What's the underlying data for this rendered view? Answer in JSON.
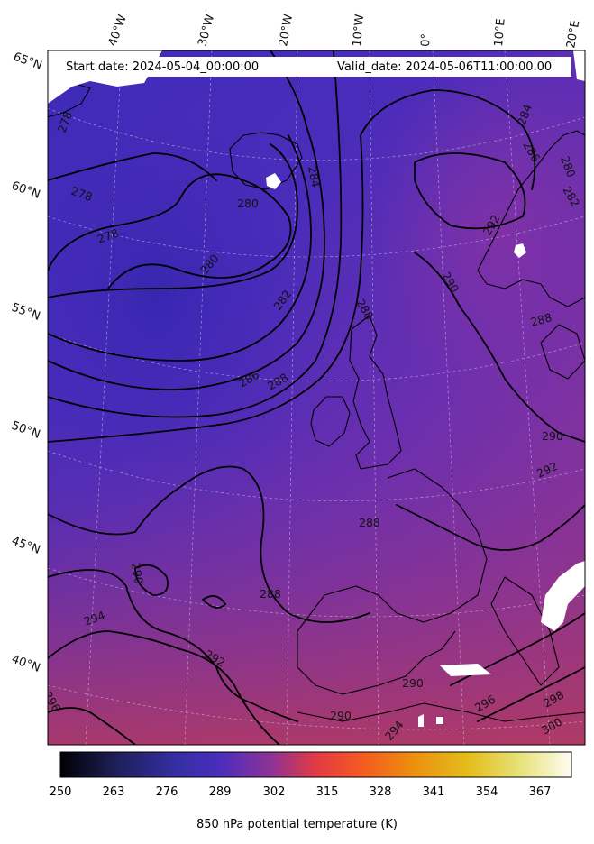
{
  "header": {
    "start_date": "Start date: 2024-05-04_00:00:00",
    "valid_date": "Valid_date: 2024-05-06T11:00:00.00"
  },
  "lon_labels": [
    "40°W",
    "30°W",
    "20°W",
    "10°W",
    "0°",
    "10°E",
    "20°E"
  ],
  "lat_labels": [
    "65°N",
    "60°N",
    "55°N",
    "50°N",
    "45°N",
    "40°N"
  ],
  "contour_labels": [
    "278",
    "278",
    "278",
    "280",
    "280",
    "282",
    "284",
    "286",
    "288",
    "288",
    "288",
    "288",
    "288",
    "290",
    "290",
    "290",
    "290",
    "290",
    "292",
    "292",
    "294",
    "294",
    "296",
    "296",
    "298",
    "300",
    "284",
    "286",
    "280",
    "282",
    "292"
  ],
  "colorbar": {
    "label": "850 hPa potential temperature (K)",
    "ticks": [
      "250",
      "263",
      "276",
      "289",
      "302",
      "315",
      "328",
      "341",
      "354",
      "367"
    ],
    "min": 250,
    "max": 375,
    "colormap": [
      "#000004",
      "#2b2a6e",
      "#4a2dbc",
      "#7e32a6",
      "#c2395c",
      "#f4472e",
      "#ef7a12",
      "#e8ad10",
      "#e6dc52",
      "#fbfbe8"
    ]
  }
}
